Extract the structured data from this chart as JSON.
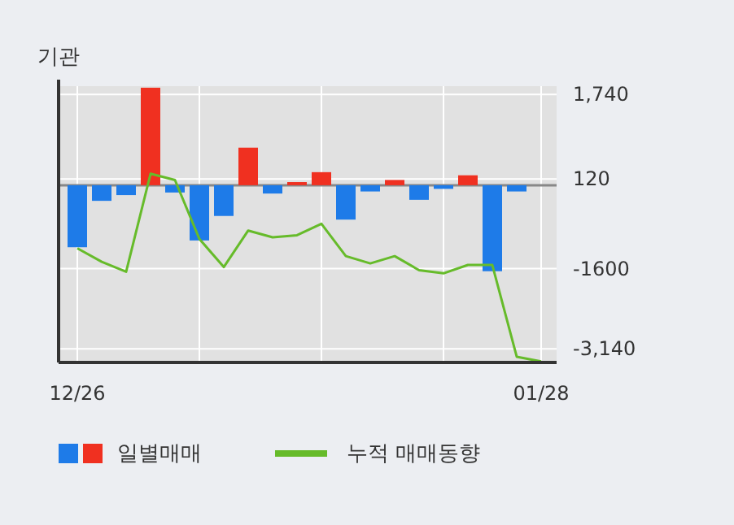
{
  "chart_data": {
    "type": "bar",
    "title": "기관",
    "categories": [
      "12/26",
      null,
      null,
      null,
      null,
      null,
      null,
      null,
      null,
      null,
      null,
      null,
      null,
      null,
      null,
      null,
      null,
      null,
      null,
      "01/28"
    ],
    "series": [
      {
        "name": "일별매매",
        "values": [
          -1190,
          -300,
          -190,
          1870,
          -140,
          -1060,
          -590,
          720,
          -160,
          60,
          250,
          -660,
          -120,
          100,
          -280,
          -70,
          190,
          -1650,
          -120,
          null
        ],
        "colors": [
          "#1e7be8",
          "#1e7be8",
          "#1e7be8",
          "#f03020",
          "#1e7be8",
          "#1e7be8",
          "#1e7be8",
          "#f03020",
          "#1e7be8",
          "#f03020",
          "#f03020",
          "#1e7be8",
          "#1e7be8",
          "#f03020",
          "#1e7be8",
          "#1e7be8",
          "#f03020",
          "#1e7be8",
          "#1e7be8",
          "#1e7be8"
        ]
      },
      {
        "name": "누적 매매동향",
        "type": "line",
        "color": "#66bb2a",
        "values": [
          -1210,
          -1470,
          -1660,
          220,
          100,
          -1030,
          -1570,
          -870,
          -1000,
          -960,
          -740,
          -1360,
          -1500,
          -1360,
          -1630,
          -1690,
          -1530,
          -1530,
          -3290,
          -3380
        ]
      }
    ],
    "ylim": [
      -3400,
      1900
    ],
    "yticks": [
      {
        "value": 1740,
        "label": "1,740"
      },
      120,
      -1600,
      {
        "value": -3140,
        "label": "-3,140"
      }
    ],
    "grid": true,
    "legend": "bottom"
  }
}
